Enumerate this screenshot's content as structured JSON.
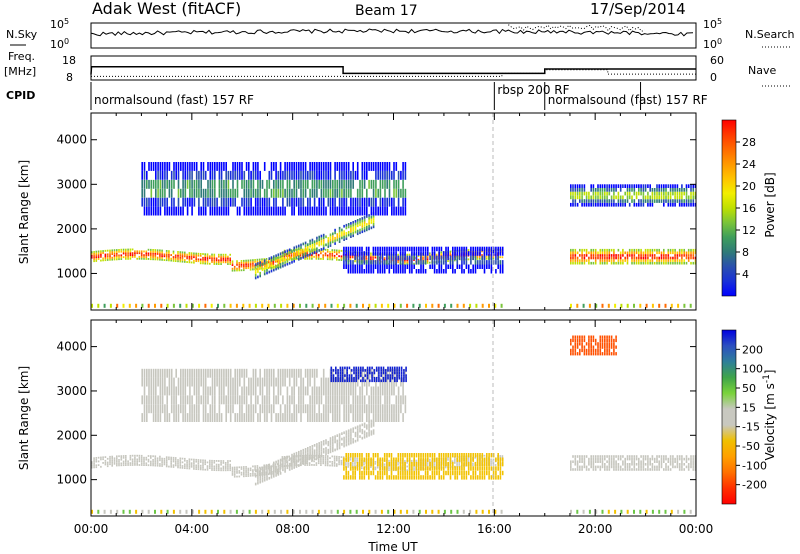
{
  "header": {
    "station": "Adak West (fitACF)",
    "beam": "Beam 17",
    "date": "17/Sep/2014"
  },
  "panels": {
    "nsky_label": "N.Sky",
    "nsearch_label": "N.Search",
    "noise_ticks_left": [
      "10^5",
      "10^0"
    ],
    "noise_ticks_right": [
      "10^5",
      "10^0"
    ],
    "freq_label": "Freq.",
    "freq_unit": "[MHz]",
    "freq_ticks": [
      "18",
      "8"
    ],
    "nave_label": "Nave",
    "nave_ticks": [
      "60",
      "0"
    ],
    "cpid_label": "CPID",
    "cpid_segments": [
      {
        "label": "normalsound (fast) 157 RF",
        "start_hour": 0,
        "end_hour": 16.0
      },
      {
        "label": "rbsp 200 RF",
        "start_hour": 16.0,
        "end_hour": 18.0
      },
      {
        "label": "normalsound (fast) 157 RF",
        "start_hour": 18.0,
        "end_hour": 24.0
      }
    ]
  },
  "chart_data": [
    {
      "type": "heatmap",
      "quantity": "Power",
      "ylabel": "Slant Range [km]",
      "xlabel": "Time UT",
      "xlim_hours": [
        0,
        24
      ],
      "ylim": [
        180,
        4600
      ],
      "x_tick_labels": [
        "00:00",
        "04:00",
        "08:00",
        "12:00",
        "16:00",
        "20:00",
        "00:00"
      ],
      "y_ticks": [
        1000,
        2000,
        3000,
        4000
      ],
      "colorbar": {
        "label": "Power [dB]",
        "ticks": [
          "28",
          "24",
          "20",
          "16",
          "12",
          "8",
          "4"
        ],
        "colors": [
          "#ff0000",
          "#ff3a00",
          "#ff6a00",
          "#ff9900",
          "#ffc400",
          "#f2ee00",
          "#bfe000",
          "#7ac43a",
          "#3f9e5c",
          "#2f7a78",
          "#2a4fae",
          "#1830d8",
          "#0000ff"
        ]
      },
      "bands": [
        {
          "name": "main",
          "start_hour": 0.0,
          "end_hour": 16.3,
          "range_start": 1250,
          "range_end": 1500,
          "power_db": 28
        },
        {
          "name": "rising arc",
          "start_hour": 6.5,
          "end_hour": 11.2,
          "range_start": 1000,
          "range_end": 2300,
          "power_db": 20
        },
        {
          "name": "upper patch",
          "start_hour": 2.0,
          "end_hour": 12.5,
          "range_start": 2300,
          "range_end": 3500,
          "power_db": 12
        },
        {
          "name": "late band",
          "start_hour": 10.0,
          "end_hour": 16.3,
          "range_start": 1000,
          "range_end": 1600,
          "power_db": 8
        },
        {
          "name": "evening main",
          "start_hour": 19.0,
          "end_hour": 24.0,
          "range_start": 1200,
          "range_end": 1550,
          "power_db": 28
        },
        {
          "name": "evening upper",
          "start_hour": 19.0,
          "end_hour": 24.0,
          "range_start": 2500,
          "range_end": 3000,
          "power_db": 16
        }
      ]
    },
    {
      "type": "heatmap",
      "quantity": "Velocity",
      "ylabel": "Slant Range [km]",
      "xlabel": "Time UT",
      "xlim_hours": [
        0,
        24
      ],
      "ylim": [
        180,
        4600
      ],
      "x_tick_labels": [
        "00:00",
        "04:00",
        "08:00",
        "12:00",
        "16:00",
        "20:00",
        "00:00"
      ],
      "y_ticks": [
        1000,
        2000,
        3000,
        4000
      ],
      "colorbar": {
        "label": "Velocity [m s^-1]",
        "ticks": [
          "200",
          "100",
          "50",
          "15",
          "-15",
          "-50",
          "-100",
          "-200"
        ],
        "colors": [
          "#0000e0",
          "#2c4fc0",
          "#2e7f9a",
          "#3fa44a",
          "#7ad33a",
          "#c8c8c0",
          "#c8c8c0",
          "#f0c000",
          "#ffa000",
          "#ff7000",
          "#ff3000",
          "#ff0000"
        ]
      },
      "bands": [
        {
          "name": "main",
          "start_hour": 0.0,
          "end_hour": 16.3,
          "range_start": 1250,
          "range_end": 1500,
          "velocity": 0
        },
        {
          "name": "rising arc",
          "start_hour": 6.5,
          "end_hour": 11.2,
          "range_start": 1000,
          "range_end": 2300,
          "velocity": 0
        },
        {
          "name": "upper patch",
          "start_hour": 2.0,
          "end_hour": 12.5,
          "range_start": 2300,
          "range_end": 3500,
          "velocity": 0
        },
        {
          "name": "late band",
          "start_hour": 10.0,
          "end_hour": 16.3,
          "range_start": 1000,
          "range_end": 1600,
          "velocity": -30
        },
        {
          "name": "far echo",
          "start_hour": 9.5,
          "end_hour": 12.5,
          "range_start": 3200,
          "range_end": 3550,
          "velocity": 200
        },
        {
          "name": "evening main",
          "start_hour": 19.0,
          "end_hour": 24.0,
          "range_start": 1200,
          "range_end": 1550,
          "velocity": 0
        },
        {
          "name": "evening patch",
          "start_hour": 19.0,
          "end_hour": 20.8,
          "range_start": 3800,
          "range_end": 4250,
          "velocity": -120
        }
      ]
    }
  ]
}
